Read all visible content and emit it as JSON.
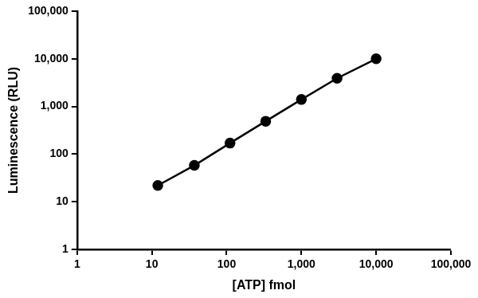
{
  "chart_data": {
    "type": "line",
    "marker": "circle",
    "line_style": "solid",
    "color": "#000000",
    "log": true,
    "grid": false,
    "x_label": "[ATP] fmol",
    "y_label": "Luminescence (RLU)",
    "x": [
      12,
      37,
      111,
      333,
      1000,
      3000,
      10000
    ],
    "values": [
      22,
      58,
      170,
      490,
      1400,
      3900,
      10000
    ],
    "xlim": [
      1,
      100000
    ],
    "xticks": [
      1,
      10,
      100,
      {
        "value": 1000,
        "label": "1,000"
      },
      {
        "value": 10000,
        "label": "10,000"
      },
      {
        "value": 100000,
        "label": "100,000"
      }
    ],
    "ylim": [
      1,
      100000
    ],
    "yticks": [
      1,
      10,
      100,
      {
        "value": 1000,
        "label": "1,000"
      },
      {
        "value": 10000,
        "label": "10,000"
      },
      {
        "value": 100000,
        "label": "100,000"
      }
    ]
  }
}
